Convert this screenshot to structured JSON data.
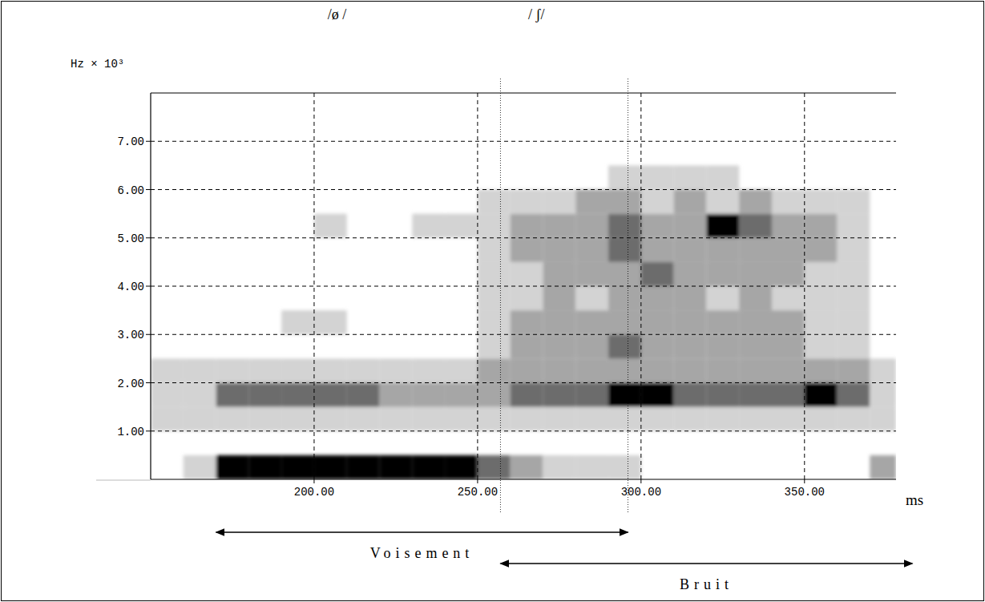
{
  "chart_data": {
    "type": "spectrogram",
    "x_label": "ms",
    "y_label": "Hz × 10³",
    "xlim": [
      150,
      378
    ],
    "ylim": [
      0,
      8
    ],
    "xticks": [
      {
        "value": 200,
        "label": "200.00"
      },
      {
        "value": 250,
        "label": "250.00"
      },
      {
        "value": 300,
        "label": "300.00"
      },
      {
        "value": 350,
        "label": "350.00"
      }
    ],
    "yticks": [
      {
        "value": 1,
        "label": "1.00"
      },
      {
        "value": 2,
        "label": "2.00"
      },
      {
        "value": 3,
        "label": "3.00"
      },
      {
        "value": 4,
        "label": "4.00"
      },
      {
        "value": 5,
        "label": "5.00"
      },
      {
        "value": 6,
        "label": "6.00"
      },
      {
        "value": 7,
        "label": "7.00"
      }
    ],
    "grid": true,
    "x_edges": [
      150,
      160,
      170,
      180,
      190,
      200,
      210,
      220,
      230,
      240,
      250,
      260,
      270,
      280,
      290,
      300,
      310,
      320,
      330,
      340,
      350,
      360,
      370,
      378
    ],
    "y_edges": [
      0,
      0.5,
      1,
      1.5,
      2,
      2.5,
      3,
      3.5,
      4,
      4.5,
      5,
      5.5,
      6,
      6.5,
      7,
      7.5,
      8
    ],
    "cells": [
      [
        0,
        1,
        4,
        4,
        4,
        4,
        4,
        4,
        4,
        4,
        3,
        2,
        1,
        1,
        1,
        0,
        0,
        0,
        0,
        0,
        0,
        0,
        2
      ],
      [
        0,
        0,
        0,
        0,
        0,
        0,
        0,
        0,
        0,
        0,
        0,
        0,
        0,
        0,
        0,
        0,
        0,
        0,
        0,
        0,
        0,
        0,
        0
      ],
      [
        1,
        1,
        1,
        1,
        1,
        1,
        1,
        1,
        1,
        1,
        1,
        1,
        1,
        1,
        1,
        1,
        1,
        1,
        1,
        1,
        1,
        1,
        1
      ],
      [
        1,
        1,
        3,
        3,
        3,
        3,
        3,
        2,
        2,
        2,
        2,
        3,
        3,
        3,
        4,
        4,
        3,
        3,
        3,
        3,
        4,
        3,
        1
      ],
      [
        1,
        1,
        1,
        1,
        1,
        1,
        1,
        1,
        1,
        1,
        2,
        2,
        2,
        2,
        2,
        2,
        2,
        2,
        2,
        2,
        2,
        2,
        1
      ],
      [
        0,
        0,
        0,
        0,
        0,
        0,
        0,
        0,
        0,
        0,
        1,
        2,
        2,
        2,
        3,
        2,
        2,
        2,
        2,
        2,
        1,
        1,
        0
      ],
      [
        0,
        0,
        0,
        0,
        1,
        1,
        0,
        0,
        0,
        0,
        1,
        2,
        2,
        2,
        2,
        2,
        2,
        2,
        2,
        2,
        1,
        1,
        0
      ],
      [
        0,
        0,
        0,
        0,
        0,
        0,
        0,
        0,
        0,
        0,
        1,
        1,
        2,
        1,
        2,
        2,
        2,
        1,
        2,
        1,
        1,
        1,
        0
      ],
      [
        0,
        0,
        0,
        0,
        0,
        0,
        0,
        0,
        0,
        0,
        1,
        1,
        2,
        2,
        2,
        3,
        2,
        2,
        2,
        2,
        1,
        1,
        0
      ],
      [
        0,
        0,
        0,
        0,
        0,
        0,
        0,
        0,
        0,
        0,
        1,
        2,
        2,
        2,
        3,
        2,
        2,
        2,
        2,
        2,
        2,
        1,
        0
      ],
      [
        0,
        0,
        0,
        0,
        0,
        1,
        0,
        0,
        1,
        1,
        1,
        2,
        2,
        2,
        3,
        2,
        2,
        4,
        3,
        2,
        2,
        1,
        0
      ],
      [
        0,
        0,
        0,
        0,
        0,
        0,
        0,
        0,
        0,
        0,
        1,
        1,
        1,
        2,
        2,
        1,
        2,
        1,
        2,
        1,
        1,
        1,
        0
      ],
      [
        0,
        0,
        0,
        0,
        0,
        0,
        0,
        0,
        0,
        0,
        0,
        0,
        0,
        0,
        1,
        1,
        1,
        1,
        0,
        0,
        0,
        0,
        0
      ],
      [
        0,
        0,
        0,
        0,
        0,
        0,
        0,
        0,
        0,
        0,
        0,
        0,
        0,
        0,
        0,
        0,
        0,
        0,
        0,
        0,
        0,
        0,
        0
      ],
      [
        0,
        0,
        0,
        0,
        0,
        0,
        0,
        0,
        0,
        0,
        0,
        0,
        0,
        0,
        0,
        0,
        0,
        0,
        0,
        0,
        0,
        0,
        0
      ],
      [
        0,
        0,
        0,
        0,
        0,
        0,
        0,
        0,
        0,
        0,
        0,
        0,
        0,
        0,
        0,
        0,
        0,
        0,
        0,
        0,
        0,
        0,
        0
      ]
    ],
    "segments": [
      {
        "label": "/ø /",
        "x": 207
      },
      {
        "label": "/ ʃ/",
        "x": 268
      }
    ],
    "boundaries": [
      257,
      296
    ],
    "spans": [
      {
        "label": "Voisement",
        "from": 170,
        "to": 296
      },
      {
        "label": "Bruit",
        "from": 257,
        "to": 383
      }
    ]
  }
}
